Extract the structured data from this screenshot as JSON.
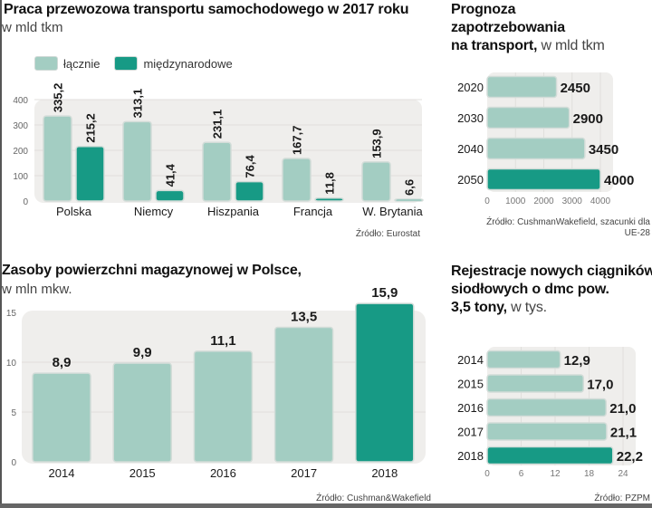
{
  "colors": {
    "light": "#a3cdc2",
    "dark": "#179a85",
    "plot_bg": "#efeeec",
    "grid": "#e0dfdc",
    "bar_stroke": "#d2dcd8"
  },
  "chart_data": [
    {
      "id": "freight",
      "type": "bar",
      "title": "Praca przewozowa transportu samochodowego w 2017 roku",
      "subtitle": "w mld tkm",
      "categories": [
        "Polska",
        "Niemcy",
        "Hiszpania",
        "Francja",
        "W. Brytania"
      ],
      "series": [
        {
          "name": "łącznie",
          "values": [
            335.2,
            313.1,
            231.1,
            167.7,
            153.9
          ],
          "labels": [
            "335,2",
            "313,1",
            "231,1",
            "167,7",
            "153,9"
          ]
        },
        {
          "name": "międzynarodowe",
          "values": [
            215.2,
            41.4,
            76.4,
            11.8,
            6.6
          ],
          "labels": [
            "215,2",
            "41,4",
            "76,4",
            "11,8",
            "6,6"
          ]
        }
      ],
      "yticks": [
        "0",
        "100",
        "200",
        "300",
        "400"
      ],
      "ylim": [
        0,
        400
      ],
      "legend": "top-left",
      "grid": true,
      "source": "Źródło: Eurostat"
    },
    {
      "id": "forecast",
      "type": "bar",
      "orientation": "horizontal",
      "title_bold": "Prognoza zapotrzebowania na transport,",
      "title_lines": [
        "Prognoza",
        "zapotrzebowania",
        "na transport,"
      ],
      "title_unit": "w mld tkm",
      "categories": [
        "2020",
        "2030",
        "2040",
        "2050"
      ],
      "values": [
        2450,
        2900,
        3450,
        4000
      ],
      "labels": [
        "2450",
        "2900",
        "3450",
        "4000"
      ],
      "highlight_index": 3,
      "xticks": [
        "0",
        "1000",
        "2000",
        "3000",
        "4000"
      ],
      "xlim": [
        0,
        4000
      ],
      "grid": true,
      "source_lines": [
        "Źródło: CushmanWakefield, szacunki dla",
        "UE-28"
      ]
    },
    {
      "id": "warehouse",
      "type": "bar",
      "title": "Zasoby powierzchni magazynowej w Polsce,",
      "subtitle": "w mln mkw.",
      "categories": [
        "2014",
        "2015",
        "2016",
        "2017",
        "2018"
      ],
      "values": [
        8.9,
        9.9,
        11.1,
        13.5,
        15.9
      ],
      "labels": [
        "8,9",
        "9,9",
        "11,1",
        "13,5",
        "15,9"
      ],
      "highlight_index": 4,
      "yticks": [
        "0",
        "5",
        "10",
        "15"
      ],
      "ylim": [
        0,
        15
      ],
      "grid": true,
      "source": "Źródło: Cushman&Wakefield"
    },
    {
      "id": "tractors",
      "type": "bar",
      "orientation": "horizontal",
      "title_lines": [
        "Rejestracje nowych ciągników",
        "siodłowych o dmc pow.",
        "3,5 tony,"
      ],
      "title_unit": "w tys.",
      "categories": [
        "2014",
        "2015",
        "2016",
        "2017",
        "2018"
      ],
      "values": [
        12.9,
        17.0,
        21.0,
        21.1,
        22.2
      ],
      "labels": [
        "12,9",
        "17,0",
        "21,0",
        "21,1",
        "22,2"
      ],
      "highlight_index": 4,
      "xticks": [
        "0",
        "6",
        "12",
        "18",
        "24"
      ],
      "xlim": [
        0,
        24
      ],
      "grid": true,
      "source": "Źródło: PZPM"
    }
  ]
}
